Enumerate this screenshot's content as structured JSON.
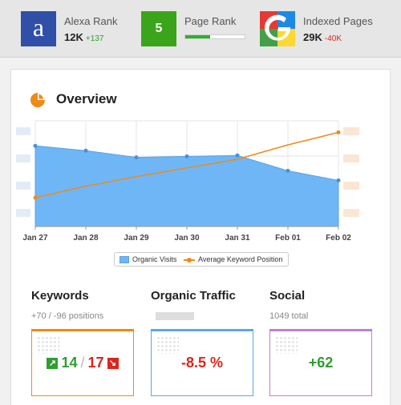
{
  "topbar": {
    "alexa": {
      "icon": "alexa-a-icon",
      "glyph": "a",
      "label": "Alexa Rank",
      "value": "12K",
      "delta": "+137",
      "delta_color": "#2e9e2e"
    },
    "pagerank": {
      "icon": "pagerank-icon",
      "value": "5",
      "label": "Page Rank",
      "bar_fraction": 0.42
    },
    "indexed": {
      "icon": "google-icon",
      "label": "Indexed Pages",
      "value": "29K",
      "delta": "-40K",
      "delta_color": "#d9261c"
    }
  },
  "overview": {
    "title": "Overview",
    "icon": "pie-chart-icon"
  },
  "chart_data": {
    "type": "area",
    "title": "",
    "categories": [
      "Jan 27",
      "Jan 28",
      "Jan 29",
      "Jan 30",
      "Jan 31",
      "Feb 01",
      "Feb 02"
    ],
    "series": [
      {
        "name": "Organic Visits",
        "type": "area",
        "values": [
          0.84,
          0.79,
          0.72,
          0.73,
          0.74,
          0.58,
          0.48
        ],
        "color": "#6fb6f7"
      },
      {
        "name": "Average Keyword Position",
        "type": "line",
        "values": [
          0.3,
          0.42,
          0.52,
          0.61,
          0.7,
          0.85,
          0.98
        ],
        "color": "#f08a16"
      }
    ],
    "ylim": [
      0,
      1
    ],
    "grid": true,
    "legend": "bottom"
  },
  "sections": {
    "keywords": {
      "title": "Keywords",
      "subtitle": "+70 / -96 positions",
      "up_value": "14",
      "separator": "/",
      "down_value": "17",
      "up_color": "#2e9e2e",
      "down_color": "#d9261c",
      "border_color": "#f08a16"
    },
    "traffic": {
      "title": "Organic Traffic",
      "value": "-8.5 %",
      "value_color": "#d9261c",
      "border_color": "#5aa7e8"
    },
    "social": {
      "title": "Social",
      "subtitle": "1049 total",
      "value": "+62",
      "value_color": "#2e9e2e",
      "border_color": "#c07fd0"
    }
  }
}
